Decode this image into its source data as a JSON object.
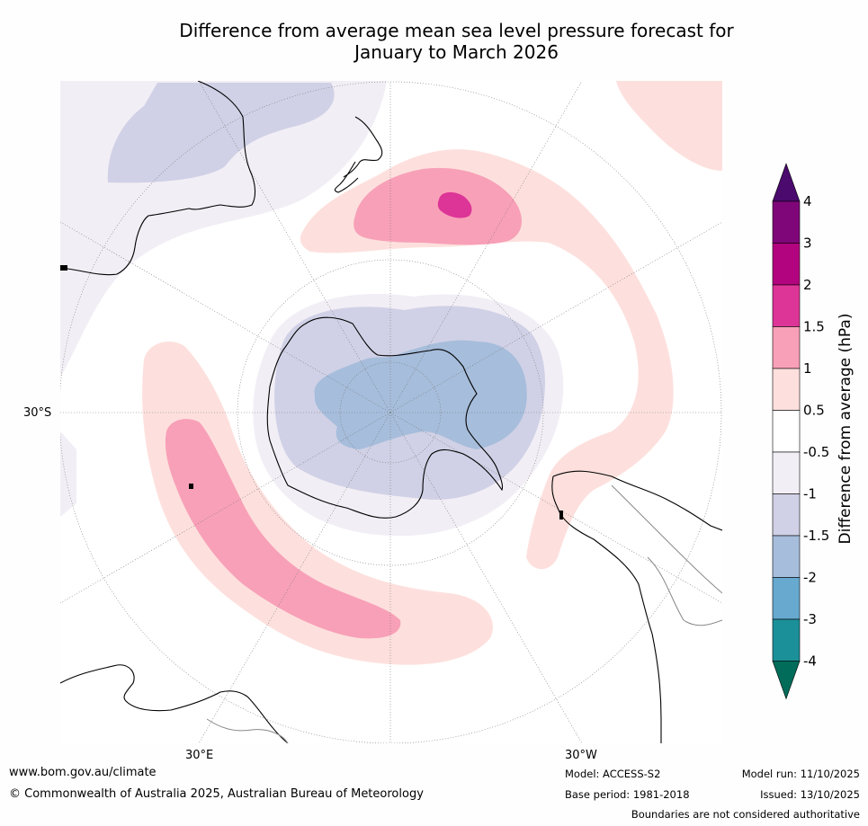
{
  "title_line1": "Difference from average mean sea level pressure forecast for",
  "title_line2": "January to March 2026",
  "map": {
    "lat_label": "30°S",
    "lon_label_east": "30°E",
    "lon_label_west": "30°W"
  },
  "colorbar": {
    "title": "Difference from average (hPa)",
    "tick_labels": [
      "4",
      "3",
      "2",
      "1.5",
      "1",
      "0.5",
      "-0.5",
      "-1",
      "-1.5",
      "-2",
      "-3",
      "-4"
    ],
    "bins": [
      {
        "range": "> 4",
        "color": "#4b0a6e"
      },
      {
        "range": "3 to 4",
        "color": "#7f0679"
      },
      {
        "range": "2 to 3",
        "color": "#b2047e"
      },
      {
        "range": "1.5 to 2",
        "color": "#dd3497"
      },
      {
        "range": "1 to 1.5",
        "color": "#f8a0b8"
      },
      {
        "range": "0.5 to 1",
        "color": "#fde0dd"
      },
      {
        "range": "-0.5 to 0.5",
        "color": "#ffffff"
      },
      {
        "range": "-1 to -0.5",
        "color": "#f2eef5"
      },
      {
        "range": "-1.5 to -1",
        "color": "#d0d1e6"
      },
      {
        "range": "-2 to -1.5",
        "color": "#a6bddb"
      },
      {
        "range": "-3 to -2",
        "color": "#67a9cf"
      },
      {
        "range": "-4 to -3",
        "color": "#1c9099"
      },
      {
        "range": "< -4",
        "color": "#016c59"
      }
    ]
  },
  "footer": {
    "url": "www.bom.gov.au/climate",
    "copyright": "© Commonwealth of Australia 2025, Australian Bureau of Meteorology",
    "model": "Model: ACCESS-S2",
    "base_period": "Base period: 1981-2018",
    "model_run": "Model run: 11/10/2025",
    "issued": "Issued: 13/10/2025",
    "disclaimer": "Boundaries are not considered authoritative"
  }
}
